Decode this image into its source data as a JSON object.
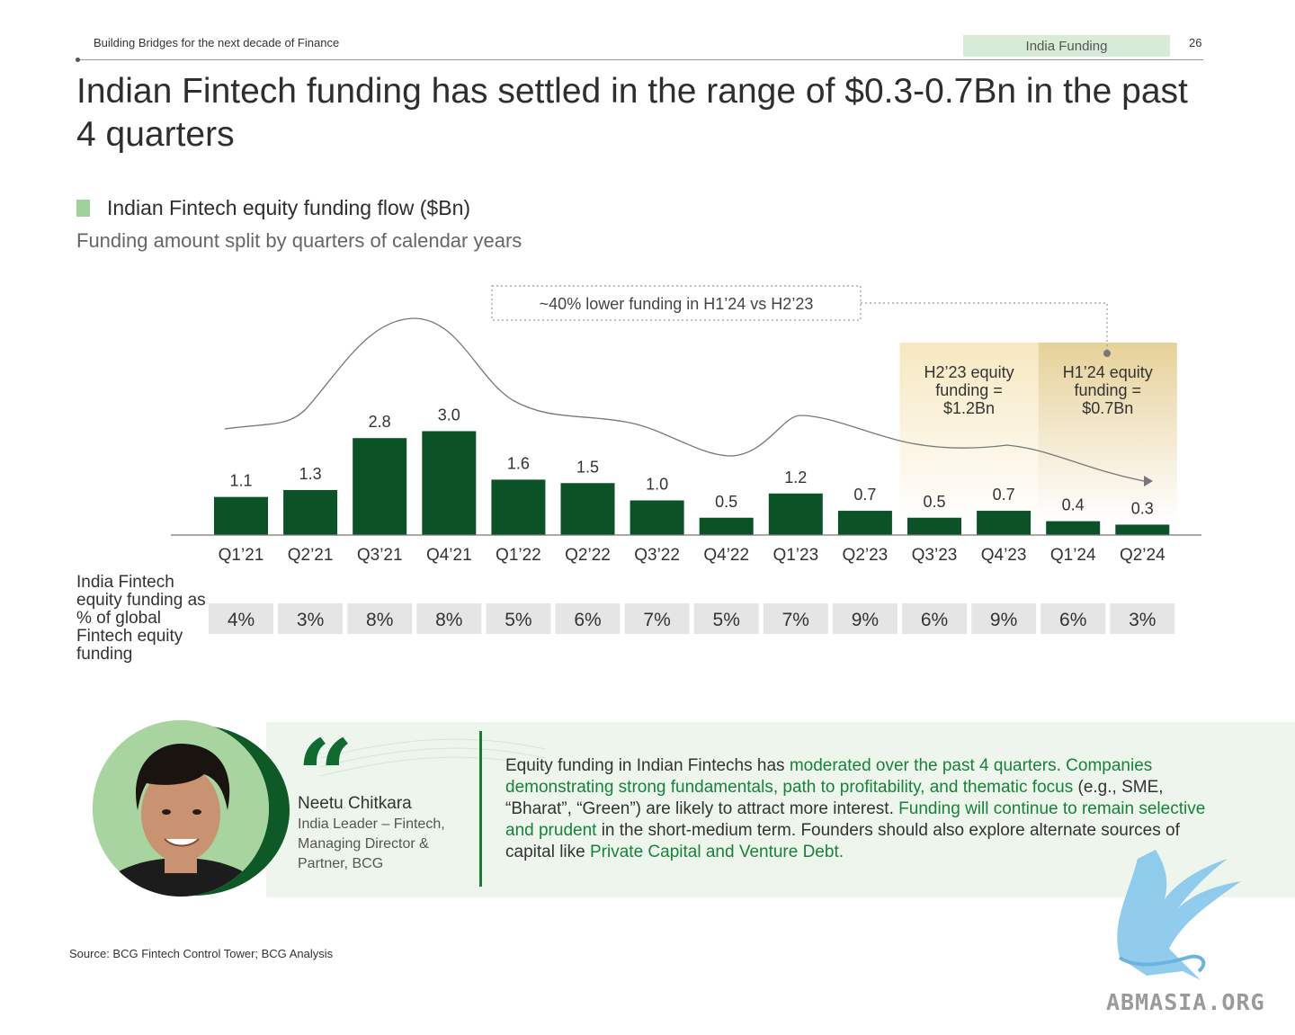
{
  "header": {
    "report_title": "Building Bridges for the next decade of Finance",
    "section": "India Funding",
    "page_number": "26"
  },
  "slide_title": "Indian Fintech funding has settled in the range of $0.3-0.7Bn in the past 4 quarters",
  "chart_data": {
    "type": "bar",
    "title": "Indian Fintech equity funding flow ($Bn)",
    "subtitle": "Funding amount split by quarters of calendar years",
    "categories": [
      "Q1’21",
      "Q2’21",
      "Q3’21",
      "Q4’21",
      "Q1’22",
      "Q2’22",
      "Q3’22",
      "Q4’22",
      "Q1’23",
      "Q2’23",
      "Q3’23",
      "Q4’23",
      "Q1’24",
      "Q2’24"
    ],
    "values": [
      1.1,
      1.3,
      2.8,
      3.0,
      1.6,
      1.5,
      1.0,
      0.5,
      1.2,
      0.7,
      0.5,
      0.7,
      0.4,
      0.3
    ],
    "value_labels": [
      "1.1",
      "1.3",
      "2.8",
      "3.0",
      "1.6",
      "1.5",
      "1.0",
      "0.5",
      "1.2",
      "0.7",
      "0.5",
      "0.7",
      "0.4",
      "0.3"
    ],
    "bar_color": "#0b5226",
    "grid": false,
    "annotation": "~40% lower funding in H1’24 vs H2’23",
    "highlights": [
      {
        "label": "H2’23 equity funding = $1.2Bn",
        "lines": [
          "H2’23 equity",
          "funding =",
          "$1.2Bn"
        ],
        "quarters": [
          "Q3’23",
          "Q4’23"
        ],
        "color": "#f5e7bf"
      },
      {
        "label": "H1’24 equity funding = $0.7Bn",
        "lines": [
          "H1’24 equity",
          "funding =",
          "$0.7Bn"
        ],
        "quarters": [
          "Q1’24",
          "Q2’24"
        ],
        "color": "#e8d49d"
      }
    ],
    "share_row": {
      "label": "India Fintech equity funding as % of global Fintech equity funding",
      "values": [
        "4%",
        "3%",
        "8%",
        "8%",
        "5%",
        "6%",
        "7%",
        "5%",
        "7%",
        "9%",
        "6%",
        "9%",
        "6%",
        "3%"
      ]
    }
  },
  "quote": {
    "name": "Neetu Chitkara",
    "role": "India Leader – Fintech, Managing Director & Partner, BCG",
    "mark": "“",
    "segments": [
      {
        "text": "Equity funding in Indian Fintechs has ",
        "highlight": false
      },
      {
        "text": "moderated over the past 4 quarters. Companies demonstrating strong fundamentals, path to profitability, and thematic focus",
        "highlight": true
      },
      {
        "text": " (e.g., SME, “Bharat”, “Green”) are likely to attract more interest. ",
        "highlight": false
      },
      {
        "text": "Funding will continue to remain selective and prudent",
        "highlight": true
      },
      {
        "text": " in the short-medium term. Founders should also explore alternate sources of capital like ",
        "highlight": false
      },
      {
        "text": "Private Capital and Venture Debt.",
        "highlight": true
      }
    ]
  },
  "source": "Source: BCG Fintech Control Tower; BCG Analysis",
  "watermark": "ABMASIA.ORG"
}
